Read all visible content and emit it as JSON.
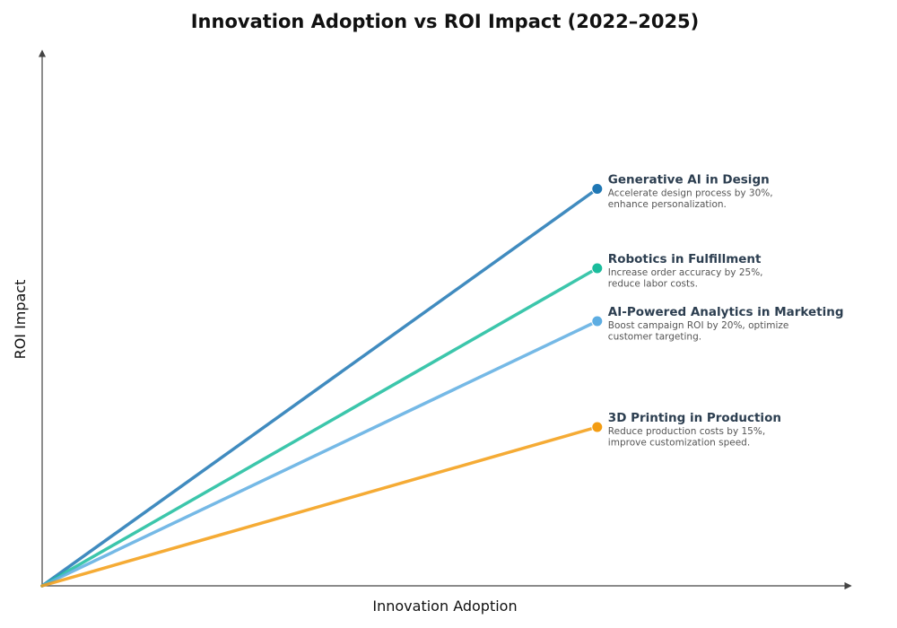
{
  "chart_data": {
    "type": "line",
    "title": "Innovation Adoption vs ROI Impact (2022–2025)",
    "xlabel": "Innovation Adoption",
    "ylabel": "ROI Impact",
    "xlim": [
      0,
      10
    ],
    "ylim": [
      0,
      10
    ],
    "grid": false,
    "legend": "none",
    "series": [
      {
        "name": "Generative AI in Design",
        "description_lines": [
          "Accelerate design process by 30%,",
          "enhance personalization."
        ],
        "color": "#1f77b4",
        "points": [
          {
            "x": 0,
            "y": 0
          },
          {
            "x": 6.8,
            "y": 7.5
          }
        ]
      },
      {
        "name": "Robotics in Fulfillment",
        "description_lines": [
          "Increase order accuracy by 25%,",
          "reduce labor costs."
        ],
        "color": "#1abc9c",
        "points": [
          {
            "x": 0,
            "y": 0
          },
          {
            "x": 6.8,
            "y": 6.0
          }
        ]
      },
      {
        "name": "AI-Powered Analytics in Marketing",
        "description_lines": [
          "Boost campaign ROI by 20%, optimize",
          "customer targeting."
        ],
        "color": "#5dade2",
        "points": [
          {
            "x": 0,
            "y": 0
          },
          {
            "x": 6.8,
            "y": 5.0
          }
        ]
      },
      {
        "name": "3D Printing in Production",
        "description_lines": [
          "Reduce production costs by 15%,",
          "improve customization speed."
        ],
        "color": "#f39c12",
        "points": [
          {
            "x": 0,
            "y": 0
          },
          {
            "x": 6.8,
            "y": 3.0
          }
        ]
      }
    ]
  }
}
